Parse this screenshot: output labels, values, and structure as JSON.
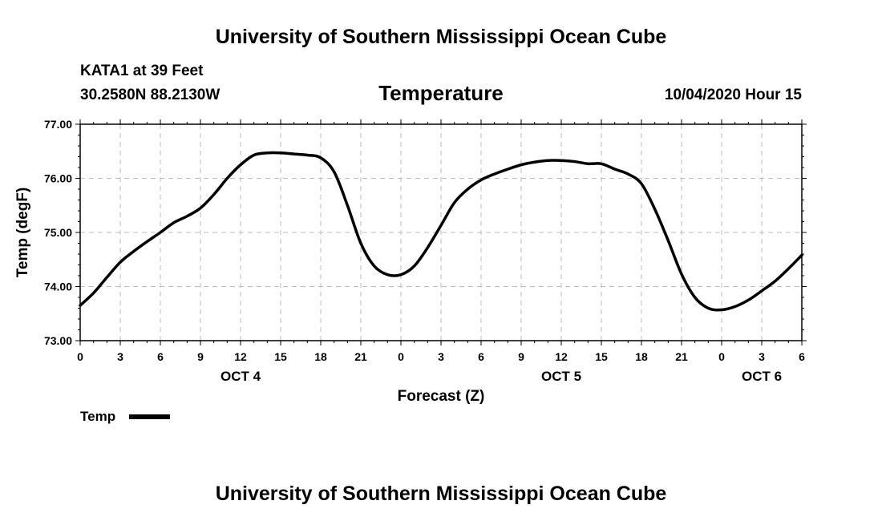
{
  "header": {
    "title": "University of Southern Mississippi Ocean Cube",
    "station": "KATA1 at 39 Feet",
    "coords": "30.2580N 88.2130W",
    "datetime": "10/04/2020 Hour 15"
  },
  "footer": {
    "title": "University of Southern Mississippi Ocean Cube"
  },
  "chart_data": {
    "type": "line",
    "title": "Temperature",
    "xlabel": "Forecast (Z)",
    "ylabel": "Temp (degF)",
    "ylim": [
      73.0,
      77.0
    ],
    "xlim": [
      0,
      54
    ],
    "yticks": [
      "73.00",
      "74.00",
      "75.00",
      "76.00",
      "77.00"
    ],
    "xticks": [
      "0",
      "3",
      "6",
      "9",
      "12",
      "15",
      "18",
      "21",
      "0",
      "3",
      "6",
      "9",
      "12",
      "15",
      "18",
      "21",
      "0",
      "3",
      "6"
    ],
    "dates": [
      {
        "label": "OCT 4",
        "hour": 12
      },
      {
        "label": "OCT 5",
        "hour": 36
      },
      {
        "label": "OCT 6",
        "hour": 51
      }
    ],
    "grid": true,
    "legend_position": "bottom-left",
    "series": [
      {
        "name": "Temp",
        "color": "#000000",
        "x": [
          0,
          1,
          2,
          3,
          4,
          5,
          6,
          7,
          8,
          9,
          10,
          11,
          12,
          13,
          14,
          15,
          16,
          17,
          18,
          19,
          20,
          21,
          22,
          23,
          24,
          25,
          26,
          27,
          28,
          29,
          30,
          31,
          32,
          33,
          34,
          35,
          36,
          37,
          38,
          39,
          40,
          41,
          42,
          43,
          44,
          45,
          46,
          47,
          48,
          49,
          50,
          51,
          52,
          53,
          54
        ],
        "values": [
          73.65,
          73.88,
          74.17,
          74.45,
          74.65,
          74.83,
          75.0,
          75.18,
          75.3,
          75.45,
          75.7,
          76.0,
          76.25,
          76.43,
          76.47,
          76.47,
          76.45,
          76.43,
          76.38,
          76.12,
          75.5,
          74.8,
          74.38,
          74.22,
          74.22,
          74.38,
          74.72,
          75.13,
          75.55,
          75.8,
          75.97,
          76.08,
          76.17,
          76.25,
          76.3,
          76.33,
          76.33,
          76.31,
          76.27,
          76.27,
          76.17,
          76.08,
          75.9,
          75.43,
          74.85,
          74.23,
          73.8,
          73.6,
          73.57,
          73.63,
          73.75,
          73.92,
          74.1,
          74.33,
          74.58
        ]
      }
    ]
  }
}
